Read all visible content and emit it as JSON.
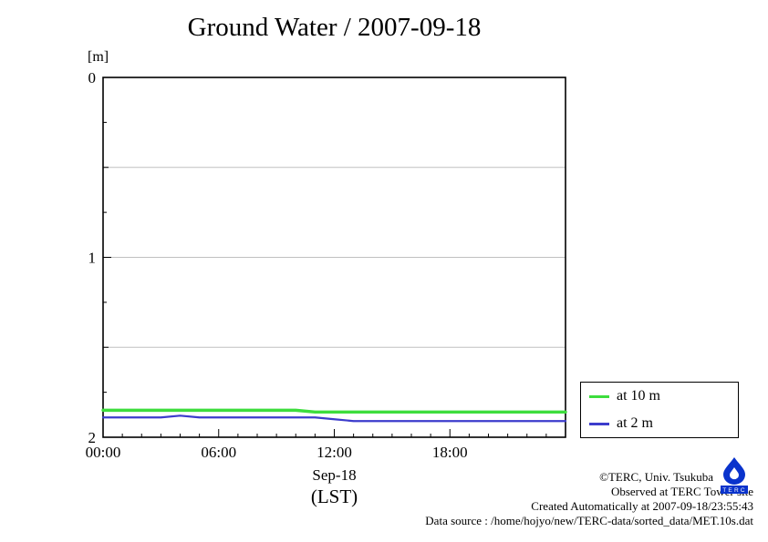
{
  "title": "Ground Water / 2007-09-18",
  "y_unit_label": "[m]",
  "x_axis_label_line1": "Sep-18",
  "x_axis_label_line2": "(LST)",
  "legend": {
    "items": [
      {
        "label": "at 10 m",
        "color": "#3ddd3d"
      },
      {
        "label": "at 2 m",
        "color": "#3c3ccc"
      }
    ]
  },
  "footer": {
    "line1": "©TERC, Univ. Tsukuba",
    "line2": "Observed at TERC Tower site",
    "line3": "Created Automatically at 2007-09-18/23:55:43",
    "line4": "Data source : /home/hojyo/new/TERC-data/sorted_data/MET.10s.dat"
  },
  "logo": {
    "text": "TERC"
  },
  "chart_data": {
    "type": "line",
    "title": "Ground Water / 2007-09-18",
    "xlabel": "Sep-18 (LST)",
    "ylabel": "[m]",
    "xlim": [
      0,
      24
    ],
    "ylim": [
      0,
      2
    ],
    "y_inverted": true,
    "x_ticks_major": [
      0,
      6,
      12,
      18
    ],
    "x_tick_labels": [
      "00:00",
      "06:00",
      "12:00",
      "18:00"
    ],
    "y_ticks_major": [
      0,
      1,
      2
    ],
    "y_tick_labels": [
      "0",
      "1",
      "2"
    ],
    "gridlines_y": [
      0.5,
      1.0,
      1.5
    ],
    "grid": true,
    "legend_position": "outside-right-bottom",
    "x": [
      0,
      1,
      2,
      3,
      4,
      5,
      6,
      7,
      8,
      9,
      10,
      11,
      12,
      13,
      14,
      15,
      16,
      17,
      18,
      19,
      20,
      21,
      22,
      23,
      24
    ],
    "series": [
      {
        "name": "at 10 m",
        "color": "#3ddd3d",
        "values": [
          1.85,
          1.85,
          1.85,
          1.85,
          1.85,
          1.85,
          1.85,
          1.85,
          1.85,
          1.85,
          1.85,
          1.86,
          1.86,
          1.86,
          1.86,
          1.86,
          1.86,
          1.86,
          1.86,
          1.86,
          1.86,
          1.86,
          1.86,
          1.86,
          1.86
        ]
      },
      {
        "name": "at 2 m",
        "color": "#3c3ccc",
        "values": [
          1.89,
          1.89,
          1.89,
          1.89,
          1.88,
          1.89,
          1.89,
          1.89,
          1.89,
          1.89,
          1.89,
          1.89,
          1.9,
          1.91,
          1.91,
          1.91,
          1.91,
          1.91,
          1.91,
          1.91,
          1.91,
          1.91,
          1.91,
          1.91,
          1.91
        ]
      }
    ]
  }
}
